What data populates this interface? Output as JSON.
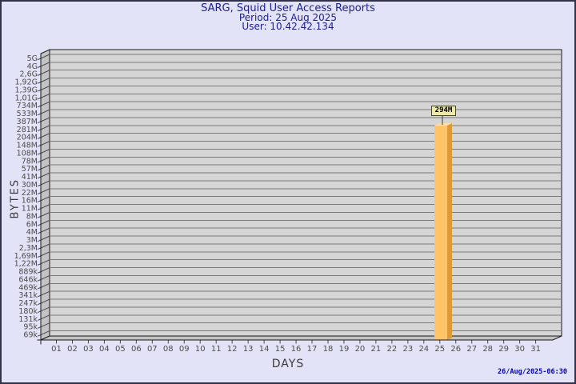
{
  "header": {
    "title": "SARG, Squid User Access Reports",
    "period_line": "Period: 25 Aug 2025",
    "user_line": "User: 10.42.42.134"
  },
  "chart_data": {
    "type": "bar",
    "title": "SARG, Squid User Access Reports",
    "subtitle_lines": [
      "Period: 25 Aug 2025",
      "User: 10.42.42.134"
    ],
    "xlabel": "DAYS",
    "ylabel": "BYTES",
    "x_tick_labels": [
      "01",
      "02",
      "03",
      "04",
      "05",
      "06",
      "07",
      "08",
      "09",
      "10",
      "11",
      "12",
      "13",
      "14",
      "15",
      "16",
      "17",
      "18",
      "19",
      "20",
      "21",
      "22",
      "23",
      "24",
      "25",
      "26",
      "27",
      "28",
      "29",
      "30",
      "31"
    ],
    "y_tick_labels": [
      "5G",
      "4G",
      "2,6G",
      "1,92G",
      "1,39G",
      "1,01G",
      "734M",
      "533M",
      "387M",
      "281M",
      "204M",
      "148M",
      "108M",
      "78M",
      "57M",
      "41M",
      "30M",
      "22M",
      "16M",
      "11M",
      "8M",
      "6M",
      "4M",
      "3M",
      "2,3M",
      "1,69M",
      "1,22M",
      "889k",
      "646k",
      "469k",
      "341k",
      "247k",
      "180k",
      "131k",
      "95k",
      "69k"
    ],
    "bars": [
      {
        "day": "25",
        "value_label": "294M"
      }
    ],
    "grid": "horizontal gridlines, one per y tick",
    "style": "3D bar chart with left side wall and floor, single orange bar"
  },
  "footer": {
    "timestamp": "26/Aug/2025-06:30"
  },
  "colors": {
    "page_bg": "#E2E3F6",
    "page_border": "#31314A",
    "plot_bg": "#D5D5D5",
    "wall_fill": "#C3C3C3",
    "grid_line": "#7B7B7B",
    "wall_tick_line": "#4A4A4A",
    "axis_line": "#1A1A1A",
    "tick_text": "#4C4C4C",
    "axis_title_text": "#3A3A3A",
    "heading_text": "#1E1E90",
    "timestamp_text": "#0000B6",
    "bar_front": "#FFC368",
    "bar_side": "#DD9B38",
    "bar_top": "#FFDEA2",
    "connector_line": "#3C3C3C",
    "value_box_bg": "#EFE9A9",
    "value_box_border": "#4A4A22",
    "value_text": "#000000"
  }
}
